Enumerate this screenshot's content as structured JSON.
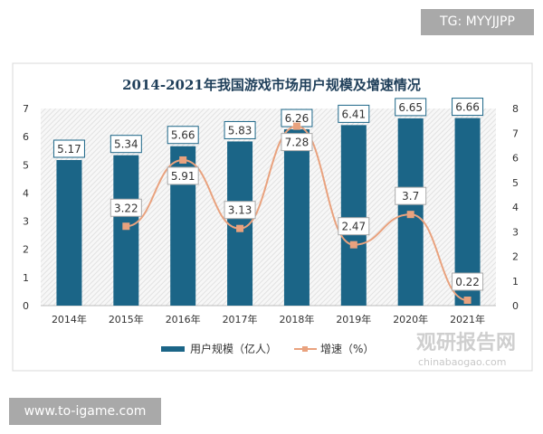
{
  "overlay": {
    "top_right": "TG: MYYJJPP",
    "bottom_left": "www.to-igame.com",
    "watermark": "观研报告网",
    "watermark_url": "chinabaogao.com"
  },
  "chart_data": {
    "type": "bar+line",
    "title": "2014-2021年我国游戏市场用户规模及增速情况",
    "categories": [
      "2014年",
      "2015年",
      "2016年",
      "2017年",
      "2018年",
      "2019年",
      "2020年",
      "2021年"
    ],
    "series": [
      {
        "name": "用户规模（亿人）",
        "type": "bar",
        "axis": "left",
        "color": "#1b6587",
        "values": [
          5.17,
          5.34,
          5.66,
          5.83,
          6.26,
          6.41,
          6.65,
          6.66
        ]
      },
      {
        "name": "增速（%）",
        "type": "line",
        "axis": "right",
        "color": "#e9a27e",
        "values": [
          null,
          3.22,
          5.91,
          3.13,
          7.28,
          2.47,
          3.7,
          0.22
        ]
      }
    ],
    "yleft": {
      "range": [
        0,
        7
      ],
      "ticks": [
        "0",
        "1",
        "2",
        "3",
        "4",
        "5",
        "6",
        "7"
      ]
    },
    "yright": {
      "range": [
        0,
        8
      ],
      "ticks": [
        "0",
        "1",
        "2",
        "3",
        "4",
        "5",
        "6",
        "7",
        "8"
      ]
    },
    "legend": "bottom"
  }
}
